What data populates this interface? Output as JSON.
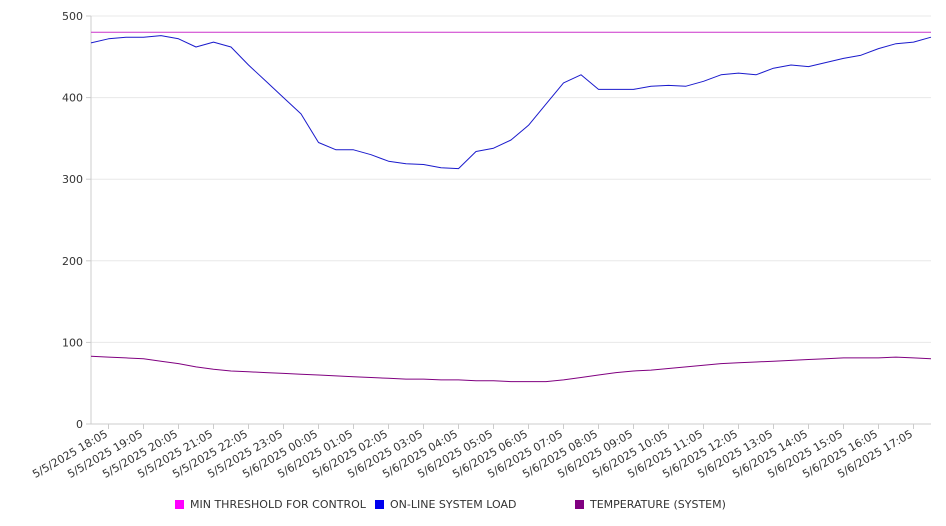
{
  "chart_data": {
    "type": "line",
    "title": "",
    "xlabel": "",
    "ylabel": "",
    "ylim": [
      0,
      500
    ],
    "yticks": [
      0,
      100,
      200,
      300,
      400,
      500
    ],
    "grid": "horizontal",
    "legend_position": "bottom",
    "x_tick_labels": [
      "5/5/2025 18:05",
      "5/5/2025 19:05",
      "5/5/2025 20:05",
      "5/5/2025 21:05",
      "5/5/2025 22:05",
      "5/5/2025 23:05",
      "5/6/2025 00:05",
      "5/6/2025 01:05",
      "5/6/2025 02:05",
      "5/6/2025 03:05",
      "5/6/2025 04:05",
      "5/6/2025 05:05",
      "5/6/2025 06:05",
      "5/6/2025 07:05",
      "5/6/2025 08:05",
      "5/6/2025 09:05",
      "5/6/2025 10:05",
      "5/6/2025 11:05",
      "5/6/2025 12:05",
      "5/6/2025 13:05",
      "5/6/2025 14:05",
      "5/6/2025 15:05",
      "5/6/2025 16:05",
      "5/6/2025 17:05"
    ],
    "x": [
      "5/5/2025 17:35",
      "5/5/2025 18:05",
      "5/5/2025 18:35",
      "5/5/2025 19:05",
      "5/5/2025 19:35",
      "5/5/2025 20:05",
      "5/5/2025 20:35",
      "5/5/2025 21:05",
      "5/5/2025 21:35",
      "5/5/2025 22:05",
      "5/5/2025 22:35",
      "5/5/2025 23:05",
      "5/5/2025 23:35",
      "5/6/2025 00:05",
      "5/6/2025 00:35",
      "5/6/2025 01:05",
      "5/6/2025 01:35",
      "5/6/2025 02:05",
      "5/6/2025 02:35",
      "5/6/2025 03:05",
      "5/6/2025 03:35",
      "5/6/2025 04:05",
      "5/6/2025 04:35",
      "5/6/2025 05:05",
      "5/6/2025 05:35",
      "5/6/2025 06:05",
      "5/6/2025 06:35",
      "5/6/2025 07:05",
      "5/6/2025 07:35",
      "5/6/2025 08:05",
      "5/6/2025 08:35",
      "5/6/2025 09:05",
      "5/6/2025 09:35",
      "5/6/2025 10:05",
      "5/6/2025 10:35",
      "5/6/2025 11:05",
      "5/6/2025 11:35",
      "5/6/2025 12:05",
      "5/6/2025 12:35",
      "5/6/2025 13:05",
      "5/6/2025 13:35",
      "5/6/2025 14:05",
      "5/6/2025 14:35",
      "5/6/2025 15:05",
      "5/6/2025 15:35",
      "5/6/2025 16:05",
      "5/6/2025 16:35",
      "5/6/2025 17:05",
      "5/6/2025 17:35"
    ],
    "series": [
      {
        "name": "MIN THRESHOLD FOR CONTROL",
        "color": "#cc33cc",
        "values": [
          480,
          480,
          480,
          480,
          480,
          480,
          480,
          480,
          480,
          480,
          480,
          480,
          480,
          480,
          480,
          480,
          480,
          480,
          480,
          480,
          480,
          480,
          480,
          480,
          480,
          480,
          480,
          480,
          480,
          480,
          480,
          480,
          480,
          480,
          480,
          480,
          480,
          480,
          480,
          480,
          480,
          480,
          480,
          480,
          480,
          480,
          480,
          480,
          480
        ]
      },
      {
        "name": "ON-LINE SYSTEM LOAD",
        "color": "#1a1acc",
        "values": [
          467,
          472,
          474,
          474,
          476,
          472,
          462,
          468,
          462,
          440,
          420,
          400,
          380,
          345,
          336,
          336,
          330,
          322,
          319,
          318,
          314,
          313,
          334,
          338,
          348,
          366,
          392,
          418,
          428,
          410,
          410,
          410,
          414,
          415,
          414,
          420,
          428,
          430,
          428,
          436,
          440,
          438,
          443,
          448,
          452,
          460,
          466,
          468,
          474
        ]
      },
      {
        "name": "TEMPERATURE (SYSTEM)",
        "color": "#800080",
        "values": [
          83,
          82,
          81,
          80,
          77,
          74,
          70,
          67,
          65,
          64,
          63,
          62,
          61,
          60,
          59,
          58,
          57,
          56,
          55,
          55,
          54,
          54,
          53,
          53,
          52,
          52,
          52,
          54,
          57,
          60,
          63,
          65,
          66,
          68,
          70,
          72,
          74,
          75,
          76,
          77,
          78,
          79,
          80,
          81,
          81,
          81,
          82,
          81,
          80
        ]
      }
    ]
  }
}
